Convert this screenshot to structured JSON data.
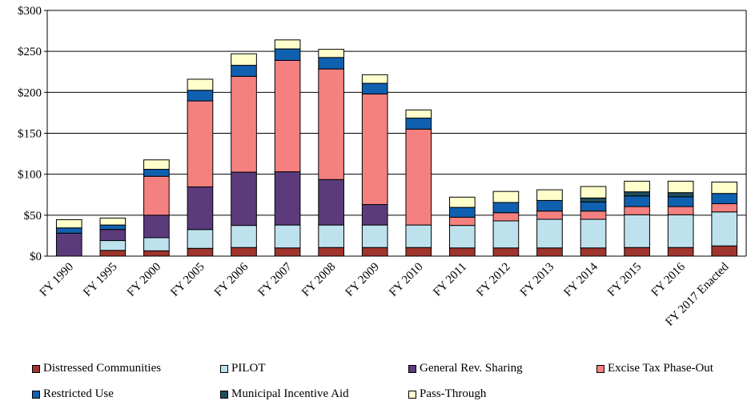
{
  "chart_data": {
    "type": "bar",
    "stacked": true,
    "categories": [
      "FY 1990",
      "FY 1995",
      "FY 2000",
      "FY 2005",
      "FY 2006",
      "FY 2007",
      "FY 2008",
      "FY 2009",
      "FY 2010",
      "FY 2011",
      "FY 2012",
      "FY 2013",
      "FY 2014",
      "FY 2015",
      "FY 2016",
      "FY 2017 Enacted"
    ],
    "series": [
      {
        "name": "Distressed Communities",
        "color": "#a0352d",
        "values": [
          0,
          7,
          6.5,
          9.5,
          10.5,
          10,
          10.5,
          10.5,
          10.5,
          10,
          10,
          10,
          10,
          10.5,
          10.5,
          12.5
        ]
      },
      {
        "name": "PILOT",
        "color": "#bde2ee",
        "values": [
          0,
          12,
          16,
          23,
          27,
          28,
          27.5,
          27.5,
          27.5,
          27.5,
          33,
          35,
          35,
          40,
          40,
          41.5
        ]
      },
      {
        "name": "General Rev. Sharing",
        "color": "#5c3b7c",
        "values": [
          28,
          13.5,
          27.5,
          52,
          65,
          65,
          55.5,
          25,
          0,
          0,
          0,
          0,
          0,
          0,
          0,
          0
        ]
      },
      {
        "name": "Excise Tax Phase-Out",
        "color": "#f58080",
        "values": [
          0,
          0,
          47.5,
          105,
          117,
          136,
          135,
          135,
          117,
          10,
          10,
          10,
          10,
          10,
          10,
          10
        ]
      },
      {
        "name": "Restricted Use",
        "color": "#1060b0",
        "values": [
          6.5,
          5.5,
          8.5,
          13,
          13.5,
          14,
          14,
          13,
          13.5,
          12,
          12.5,
          13,
          11,
          13,
          12,
          12.5
        ]
      },
      {
        "name": "Municipal Incentive Aid",
        "color": "#1f4f5f",
        "values": [
          0,
          0,
          0,
          0,
          0,
          0,
          0,
          0,
          0,
          0,
          0,
          0,
          5,
          5,
          5,
          0
        ]
      },
      {
        "name": "Pass-Through",
        "color": "#ffffcc",
        "values": [
          10,
          8.5,
          11.5,
          13.5,
          14,
          11,
          10,
          10.5,
          10,
          12.5,
          13.5,
          13,
          14,
          13,
          14,
          14
        ]
      }
    ],
    "y_tick_labels": [
      "$0",
      "$50",
      "$100",
      "$150",
      "$200",
      "$250",
      "$300"
    ],
    "y_ticks": [
      0,
      50,
      100,
      150,
      200,
      250,
      300
    ],
    "ylim": [
      0,
      300
    ],
    "grid": "horizontal",
    "legend_position": "bottom"
  }
}
